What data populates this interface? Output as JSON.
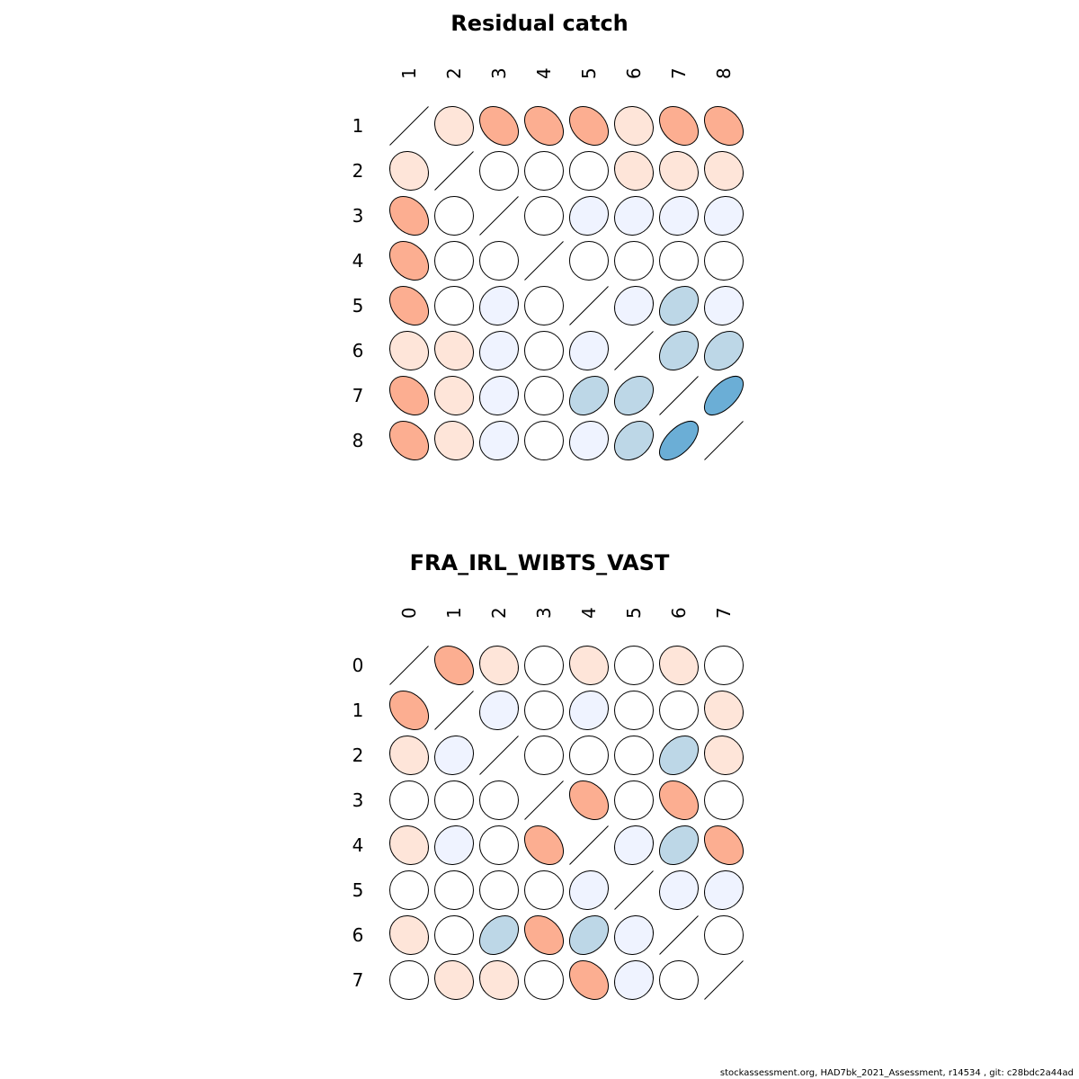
{
  "chart_data": [
    {
      "type": "heatmap",
      "subtype": "ellipse-correlation-matrix",
      "title": "Residual catch",
      "labels": [
        "1",
        "2",
        "3",
        "4",
        "5",
        "6",
        "7",
        "8"
      ],
      "values": [
        [
          1.0,
          0.1,
          0.3,
          0.3,
          0.3,
          0.1,
          0.3,
          0.3
        ],
        [
          0.1,
          1.0,
          0.0,
          0.0,
          0.0,
          0.1,
          0.1,
          0.1
        ],
        [
          0.3,
          0.0,
          1.0,
          0.0,
          -0.1,
          -0.1,
          -0.1,
          -0.1
        ],
        [
          0.3,
          0.0,
          0.0,
          1.0,
          0.0,
          0.0,
          0.0,
          0.0
        ],
        [
          0.3,
          0.0,
          -0.1,
          0.0,
          1.0,
          -0.1,
          -0.3,
          -0.1
        ],
        [
          0.1,
          0.1,
          -0.1,
          0.0,
          -0.1,
          1.0,
          -0.3,
          -0.3
        ],
        [
          0.3,
          0.1,
          -0.1,
          0.0,
          -0.3,
          -0.3,
          1.0,
          -0.6
        ],
        [
          0.3,
          0.1,
          -0.1,
          0.0,
          -0.1,
          -0.3,
          -0.6,
          1.0
        ]
      ]
    },
    {
      "type": "heatmap",
      "subtype": "ellipse-correlation-matrix",
      "title": "FRA_IRL_WIBTS_VAST",
      "labels": [
        "0",
        "1",
        "2",
        "3",
        "4",
        "5",
        "6",
        "7"
      ],
      "values": [
        [
          1.0,
          0.3,
          0.1,
          0.0,
          0.1,
          0.0,
          0.1,
          0.0
        ],
        [
          0.3,
          1.0,
          -0.1,
          0.0,
          -0.1,
          0.0,
          0.0,
          0.1
        ],
        [
          0.1,
          -0.1,
          1.0,
          0.0,
          0.0,
          0.0,
          -0.3,
          0.1
        ],
        [
          0.0,
          0.0,
          0.0,
          1.0,
          0.3,
          0.0,
          0.3,
          0.0
        ],
        [
          0.1,
          -0.1,
          0.0,
          0.3,
          1.0,
          -0.1,
          -0.3,
          0.3
        ],
        [
          0.0,
          0.0,
          0.0,
          0.0,
          -0.1,
          1.0,
          -0.1,
          -0.1
        ],
        [
          0.1,
          0.0,
          -0.3,
          0.3,
          -0.3,
          -0.1,
          1.0,
          0.0
        ],
        [
          0.0,
          0.1,
          0.1,
          0.0,
          0.3,
          -0.1,
          0.0,
          1.0
        ]
      ]
    }
  ],
  "colors": {
    "neg_strong": "#6baed6",
    "neg_mid": "#bdd7e7",
    "neg_weak": "#eff3ff",
    "zero": "#ffffff",
    "pos_weak": "#fee5d9",
    "pos_mid": "#fcae91",
    "outline": "#000000"
  },
  "footer": "stockassessment.org, HAD7bk_2021_Assessment, r14534 , git: c28bdc2a44ad"
}
